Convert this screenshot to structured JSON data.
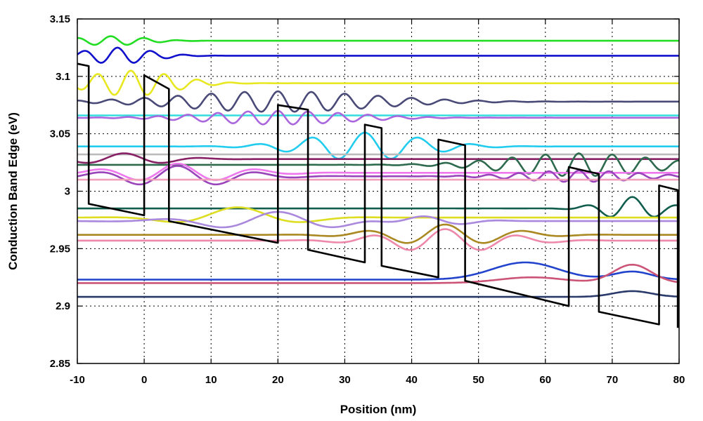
{
  "chart_data": {
    "type": "line",
    "title": "",
    "xlabel": "Position (nm)",
    "ylabel": "Conduction Band Edge (eV)",
    "xlim": [
      -10,
      80
    ],
    "ylim": [
      2.85,
      3.15
    ],
    "xticks": [
      -10,
      0,
      10,
      20,
      30,
      40,
      50,
      60,
      70,
      80
    ],
    "xtick_labels": [
      "-10",
      "0",
      "10",
      "20",
      "30",
      "40",
      "50",
      "60",
      "70",
      "80"
    ],
    "yticks": [
      2.85,
      2.9,
      2.95,
      3.0,
      3.05,
      3.1,
      3.15
    ],
    "ytick_labels": [
      "2.85",
      "2.9",
      "2.95",
      "3",
      "3.05",
      "3.1",
      "3.15"
    ],
    "grid": true,
    "legend": "none",
    "band_edge": {
      "color": "#000000",
      "x": [
        -10,
        -8.3,
        -8.3,
        0,
        0,
        3.7,
        3.7,
        20,
        20,
        24.5,
        24.5,
        33,
        33,
        35.5,
        35.5,
        44,
        44,
        48,
        48,
        63.5,
        63.5,
        68,
        68,
        77,
        77,
        79.8,
        79.8
      ],
      "y": [
        3.111,
        3.109,
        2.989,
        2.979,
        3.101,
        3.089,
        2.974,
        2.955,
        3.075,
        3.071,
        2.949,
        2.938,
        3.058,
        3.055,
        2.935,
        2.925,
        3.045,
        3.04,
        2.922,
        2.9,
        3.021,
        3.015,
        2.895,
        2.884,
        3.005,
        3.001,
        2.881
      ]
    },
    "series": [
      {
        "color": "#22dd22",
        "level": 3.131,
        "wiggles": [
          {
            "c": -5,
            "w": 7,
            "a": 0.004,
            "p": 5
          }
        ]
      },
      {
        "color": "#1111cc",
        "level": 3.118,
        "wiggles": [
          {
            "c": -4,
            "w": 7,
            "a": 0.007,
            "p": 5
          }
        ]
      },
      {
        "color": "#e8e822",
        "level": 3.094,
        "wiggles": [
          {
            "c": -2,
            "w": 9,
            "a": 0.011,
            "p": 5
          }
        ]
      },
      {
        "color": "#4a4a78",
        "level": 3.078,
        "wiggles": [
          {
            "c": 20,
            "w": 20,
            "a": 0.009,
            "p": 5
          }
        ]
      },
      {
        "color": "#33dddd",
        "level": 3.066,
        "wiggles": []
      },
      {
        "color": "#aa66dd",
        "level": 3.064,
        "wiggles": [
          {
            "c": 20,
            "w": 15,
            "a": 0.006,
            "p": 4.5
          }
        ]
      },
      {
        "color": "#22ccee",
        "level": 3.039,
        "wiggles": [
          {
            "c": 33,
            "w": 12,
            "a": 0.012,
            "p": 8
          }
        ]
      },
      {
        "color": "#bbbbbb",
        "level": 3.032,
        "wiggles": []
      },
      {
        "color": "#882266",
        "level": 3.028,
        "wiggles": [
          {
            "c": -3,
            "w": 9,
            "a": 0.005,
            "p": 12
          }
        ]
      },
      {
        "color": "#2e6b4e",
        "level": 3.023,
        "wiggles": [
          {
            "c": 65,
            "w": 15,
            "a": 0.01,
            "p": 5
          }
        ]
      },
      {
        "color": "#ee77ee",
        "level": 3.016,
        "wiggles": [
          {
            "c": 5,
            "w": 12,
            "a": 0.008,
            "p": 12
          }
        ]
      },
      {
        "color": "#9944bb",
        "level": 3.013,
        "wiggles": [
          {
            "c": 5,
            "w": 12,
            "a": 0.009,
            "p": 12
          },
          {
            "c": 65,
            "w": 12,
            "a": 0.005,
            "p": 4.5
          }
        ]
      },
      {
        "color": "#f0a0bb",
        "level": 3.01,
        "wiggles": []
      },
      {
        "color": "#115e4e",
        "level": 2.985,
        "wiggles": [
          {
            "c": 73,
            "w": 6,
            "a": 0.01,
            "p": 7
          }
        ]
      },
      {
        "color": "#dddd22",
        "level": 2.977,
        "wiggles": [
          {
            "c": 14,
            "w": 11,
            "a": 0.009,
            "p": 22
          }
        ]
      },
      {
        "color": "#aa88dd",
        "level": 2.974,
        "wiggles": [
          {
            "c": 20,
            "w": 14,
            "a": 0.008,
            "p": 18
          },
          {
            "c": 42,
            "w": 8,
            "a": 0.004,
            "p": 12
          }
        ]
      },
      {
        "color": "#aa8822",
        "level": 2.962,
        "wiggles": [
          {
            "c": 45,
            "w": 12,
            "a": 0.009,
            "p": 12
          }
        ]
      },
      {
        "color": "#ee88aa",
        "level": 2.957,
        "wiggles": [
          {
            "c": 45,
            "w": 12,
            "a": 0.01,
            "p": 11
          }
        ]
      },
      {
        "color": "#2244cc",
        "level": 2.923,
        "wiggles": [
          {
            "c": 57,
            "w": 7,
            "a": 0.015,
            "p": 1000
          },
          {
            "c": 73,
            "w": 4,
            "a": 0.007,
            "p": 1000
          }
        ]
      },
      {
        "color": "#cc5577",
        "level": 2.92,
        "wiggles": [
          {
            "c": 58,
            "w": 7,
            "a": 0.005,
            "p": 1000
          },
          {
            "c": 73,
            "w": 4,
            "a": 0.016,
            "p": 1000
          }
        ]
      },
      {
        "color": "#2a3a6a",
        "level": 2.908,
        "wiggles": [
          {
            "c": 73,
            "w": 4,
            "a": 0.005,
            "p": 1000
          }
        ]
      }
    ]
  }
}
